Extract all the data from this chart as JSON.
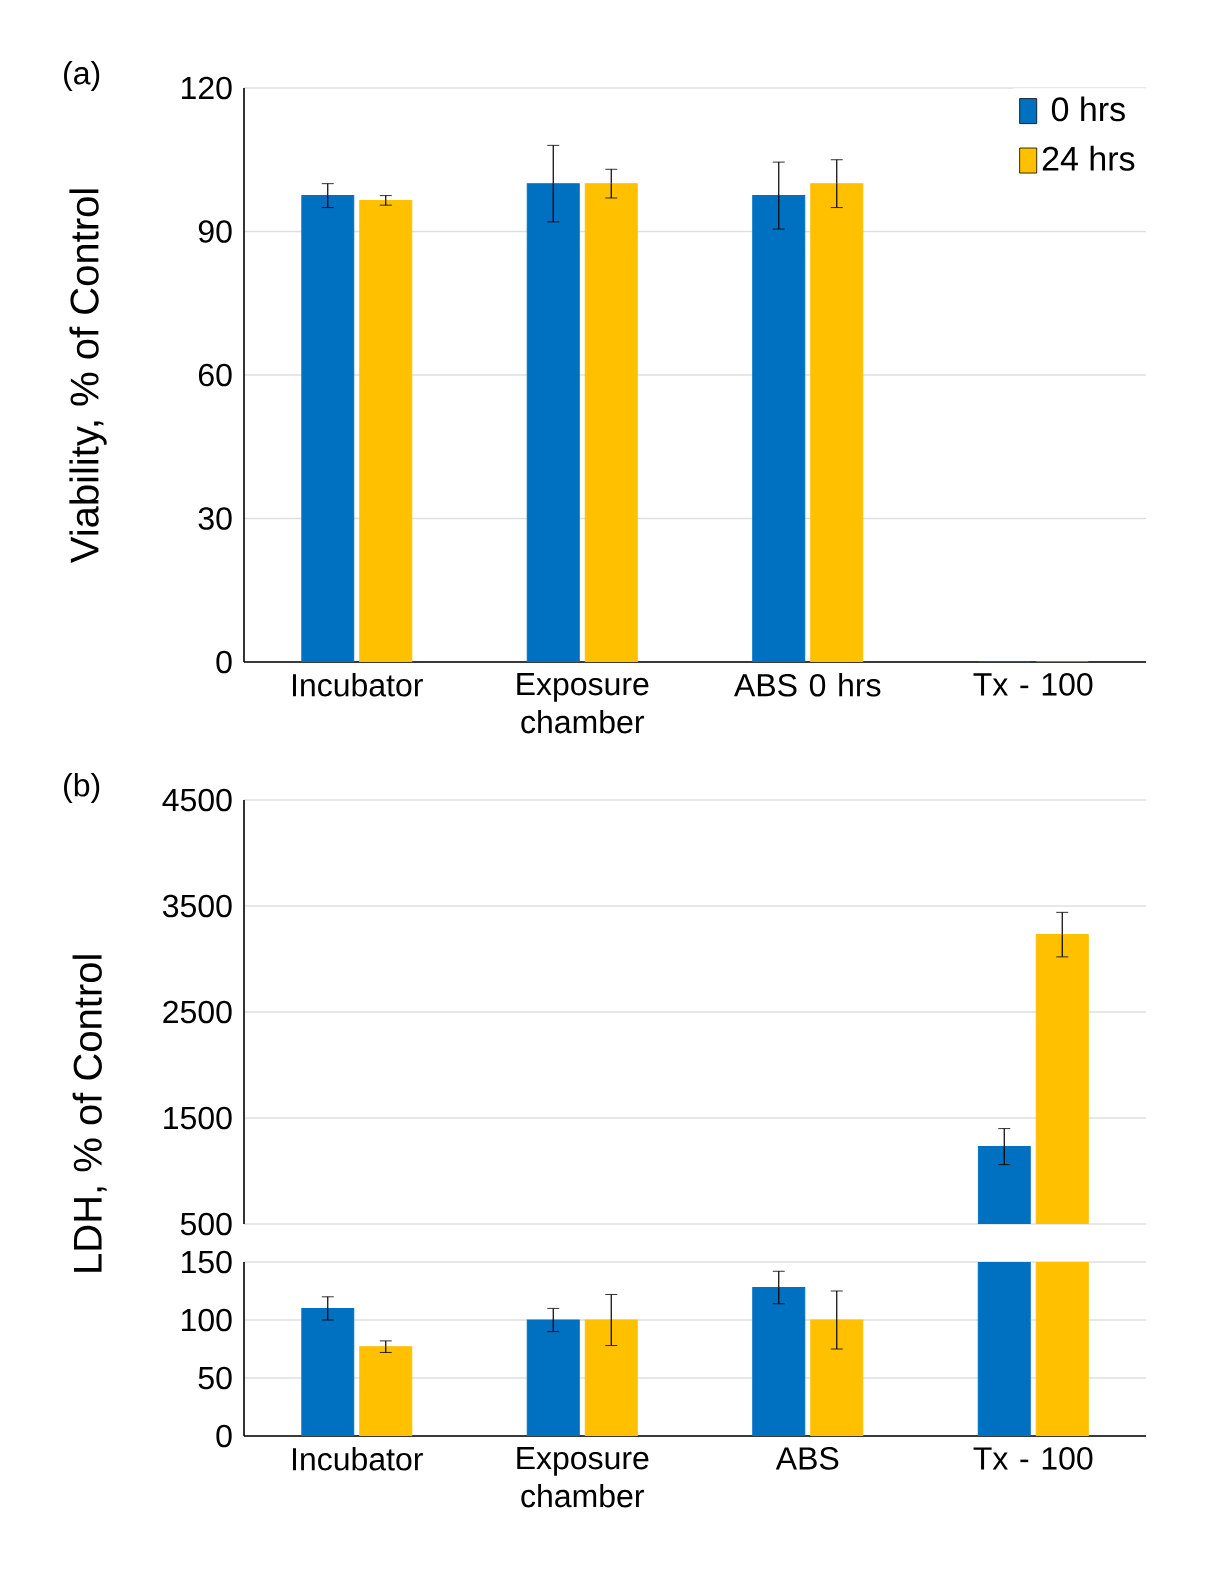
{
  "chart_data": [
    {
      "type": "bar",
      "title": "(a)",
      "ylabel": "Viability, % of Control",
      "categories": [
        "Incubator",
        "Exposure chamber",
        "ABS 0 hrs",
        "Tx - 100"
      ],
      "ylim": [
        0,
        120
      ],
      "yticks": [
        0,
        30,
        60,
        90,
        120
      ],
      "grid": "y",
      "legend": "top right",
      "series": [
        {
          "name": "0 hrs",
          "color": "#0070c0",
          "values": [
            97.5,
            100,
            97.5,
            0
          ],
          "errors": [
            2.5,
            8,
            7,
            null
          ]
        },
        {
          "name": "24 hrs",
          "color": "#ffc000",
          "values": [
            96.5,
            100,
            100,
            0
          ],
          "errors": [
            1,
            3,
            5,
            null
          ]
        }
      ]
    },
    {
      "type": "bar",
      "title": "(b)",
      "ylabel": "LDH, % of Control",
      "categories": [
        null,
        null,
        null,
        null
      ],
      "ylim": [
        500,
        4500
      ],
      "yticks": [
        500,
        1500,
        2500,
        3500,
        4500
      ],
      "grid": "y",
      "tick_labels": "y",
      "series": [
        {
          "color": "#0070c0",
          "values": [
            null,
            null,
            null,
            1230
          ],
          "errors": [
            null,
            null,
            null,
            170
          ]
        },
        {
          "color": "#ffc000",
          "values": [
            null,
            null,
            null,
            3230
          ],
          "errors": [
            null,
            null,
            null,
            210
          ]
        }
      ]
    },
    {
      "type": "bar",
      "categories": [
        "Incubator",
        "Exposure chamber",
        "ABS",
        "Tx - 100"
      ],
      "ylim": [
        0,
        150
      ],
      "yticks": [
        0,
        50,
        100,
        150
      ],
      "grid": "y",
      "series": [
        {
          "color": "#0070c0",
          "values": [
            110,
            100,
            128,
            150
          ],
          "errors": [
            10,
            10,
            14,
            null
          ]
        },
        {
          "color": "#ffc000",
          "values": [
            77,
            100,
            100,
            150
          ],
          "errors": [
            5,
            22,
            25,
            null
          ]
        }
      ]
    }
  ]
}
